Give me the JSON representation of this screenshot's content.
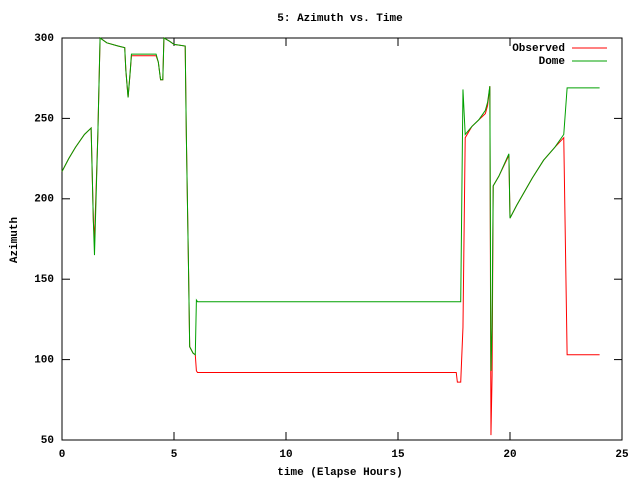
{
  "chart_data": {
    "type": "line",
    "title": "5: Azimuth vs. Time",
    "x_label": "time (Elapse Hours)",
    "y_label": "Azimuth",
    "x": [
      0,
      0.3,
      0.6,
      1.0,
      1.3,
      1.4,
      1.45,
      1.6,
      1.7,
      2.0,
      2.5,
      2.8,
      2.85,
      2.95,
      3.05,
      3.1,
      4.2,
      4.3,
      4.4,
      4.5,
      4.55,
      4.8,
      5.0,
      5.5,
      5.55,
      5.65,
      5.7,
      5.85,
      5.95,
      6.0,
      6.05,
      10,
      17.6,
      17.65,
      17.8,
      17.9,
      18.0,
      18.3,
      18.6,
      18.9,
      19.0,
      19.1,
      19.15,
      19.2,
      19.25,
      19.5,
      19.95,
      20.0,
      20.3,
      21,
      21.5,
      22.0,
      22.4,
      22.55,
      24
    ],
    "series": [
      {
        "name": "Observed",
        "color": "#ff0000",
        "values": [
          217,
          225,
          232,
          240,
          244,
          186,
          175,
          240,
          300,
          297,
          295,
          294,
          280,
          263,
          280,
          289,
          289,
          285,
          274,
          274,
          300,
          298,
          296,
          295,
          240,
          155,
          108,
          104,
          103,
          93,
          92,
          92,
          92,
          86,
          86,
          120,
          238,
          245,
          249,
          253,
          258,
          270,
          53,
          90,
          208,
          214,
          227,
          188,
          196,
          213,
          224,
          232,
          238,
          103,
          103
        ]
      },
      {
        "name": "Dome",
        "color": "#00a000",
        "values": [
          217,
          225,
          232,
          240,
          244,
          186,
          165,
          240,
          300,
          297,
          295,
          294,
          280,
          263,
          280,
          290,
          290,
          285,
          274,
          274,
          300,
          298,
          296,
          295,
          240,
          155,
          108,
          104,
          103,
          137,
          136,
          136,
          136,
          136,
          136,
          268,
          240,
          245,
          249,
          255,
          260,
          270,
          93,
          120,
          208,
          214,
          228,
          188,
          196,
          213,
          224,
          232,
          240,
          269,
          269
        ]
      }
    ],
    "xlim": [
      0,
      25
    ],
    "xticks": [
      0,
      5,
      10,
      15,
      20,
      25
    ],
    "ylim": [
      50,
      300
    ],
    "yticks": [
      50,
      100,
      150,
      200,
      250,
      300
    ],
    "legend": "upper right"
  }
}
